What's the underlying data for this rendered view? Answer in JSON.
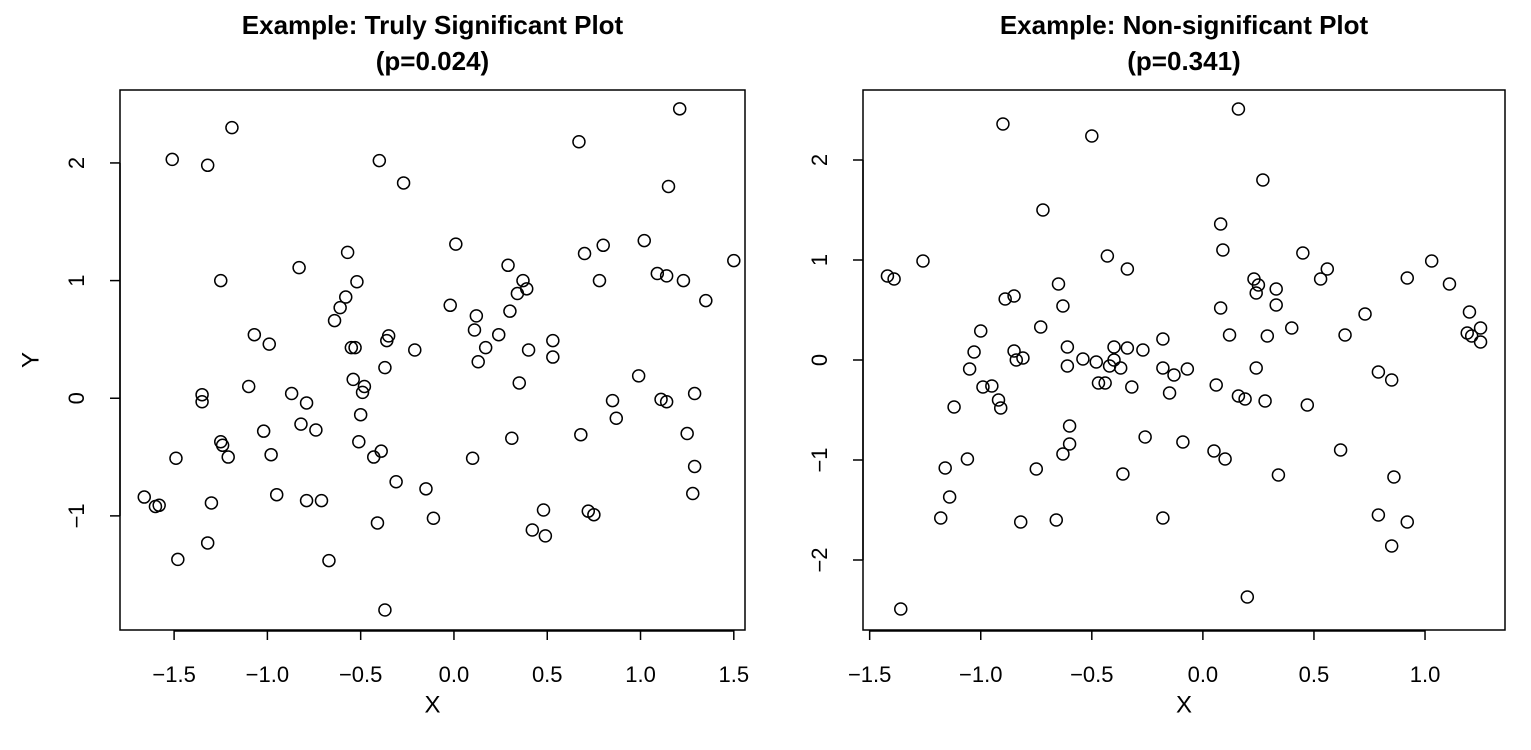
{
  "chart_data": [
    {
      "type": "scatter",
      "title": "Example: Truly Significant Plot",
      "subtitle": "(p=0.024)",
      "xlabel": "X",
      "ylabel": "Y",
      "color": "#000000",
      "xlim": [
        -1.79,
        1.56
      ],
      "ylim": [
        -1.97,
        2.62
      ],
      "xticks": [
        {
          "value": -1.5,
          "label": "−1.5"
        },
        {
          "value": -1,
          "label": "−1.0"
        },
        {
          "value": -0.5,
          "label": "−0.5"
        },
        {
          "value": 0,
          "label": "0.0"
        },
        0.5,
        {
          "value": 1,
          "label": "1.0"
        },
        1.5
      ],
      "yticks": [
        {
          "value": -1,
          "label": "−1"
        },
        0,
        1,
        2
      ],
      "x": [
        -1.66,
        -1.6,
        -1.58,
        -1.51,
        -1.49,
        -1.48,
        -1.35,
        -1.35,
        -1.32,
        -1.32,
        -1.3,
        -1.25,
        -1.25,
        -1.24,
        -1.21,
        -1.19,
        -1.1,
        -1.07,
        -1.02,
        -0.99,
        -0.98,
        -0.95,
        -0.87,
        -0.83,
        -0.82,
        -0.79,
        -0.79,
        -0.74,
        -0.71,
        -0.67,
        -0.64,
        -0.61,
        -0.58,
        -0.57,
        -0.55,
        -0.54,
        -0.53,
        -0.52,
        -0.51,
        -0.5,
        -0.49,
        -0.48,
        -0.43,
        -0.41,
        -0.39,
        -0.4,
        -0.37,
        -0.37,
        -0.36,
        -0.35,
        -0.31,
        -0.27,
        -0.21,
        -0.15,
        -0.11,
        -0.02,
        0.01,
        0.1,
        0.11,
        0.12,
        0.13,
        0.17,
        0.24,
        0.29,
        0.3,
        0.31,
        0.34,
        0.35,
        0.37,
        0.39,
        0.4,
        0.42,
        0.48,
        0.49,
        0.53,
        0.53,
        0.67,
        0.68,
        0.7,
        0.72,
        0.75,
        0.78,
        0.8,
        0.85,
        0.87,
        0.99,
        1.02,
        1.09,
        1.11,
        1.14,
        1.14,
        1.15,
        1.21,
        1.23,
        1.25,
        1.28,
        1.29,
        1.29,
        1.35,
        1.5
      ],
      "y": [
        -0.84,
        -0.92,
        -0.91,
        2.03,
        -0.51,
        -1.37,
        0.03,
        -0.03,
        1.98,
        -1.23,
        -0.89,
        1.0,
        -0.37,
        -0.4,
        -0.5,
        2.3,
        0.1,
        0.54,
        -0.28,
        0.46,
        -0.48,
        -0.82,
        0.04,
        1.11,
        -0.22,
        -0.87,
        -0.04,
        -0.27,
        -0.87,
        -1.38,
        0.66,
        0.77,
        0.86,
        1.24,
        0.43,
        0.16,
        0.43,
        0.99,
        -0.37,
        -0.14,
        0.05,
        0.1,
        -0.5,
        -1.06,
        -0.45,
        2.02,
        -1.8,
        0.26,
        0.49,
        0.53,
        -0.71,
        1.83,
        0.41,
        -0.77,
        -1.02,
        0.79,
        1.31,
        -0.51,
        0.58,
        0.7,
        0.31,
        0.43,
        0.54,
        1.13,
        0.74,
        -0.34,
        0.89,
        0.13,
        1.0,
        0.93,
        0.41,
        -1.12,
        -0.95,
        -1.17,
        0.49,
        0.35,
        2.18,
        -0.31,
        1.23,
        -0.96,
        -0.99,
        1.0,
        1.3,
        -0.02,
        -0.17,
        0.19,
        1.34,
        1.06,
        -0.01,
        -0.03,
        1.04,
        1.8,
        2.46,
        1.0,
        -0.3,
        -0.81,
        -0.58,
        0.04,
        0.83,
        1.17
      ]
    },
    {
      "type": "scatter",
      "title": "Example: Non-significant Plot",
      "subtitle": "(p=0.341)",
      "xlabel": "X",
      "color": "#000000",
      "xlim": [
        -1.53,
        1.36
      ],
      "ylim": [
        -2.7,
        2.7
      ],
      "xticks": [
        {
          "value": -1.5,
          "label": "−1.5"
        },
        {
          "value": -1,
          "label": "−1.0"
        },
        {
          "value": -0.5,
          "label": "−0.5"
        },
        {
          "value": 0,
          "label": "0.0"
        },
        0.5,
        {
          "value": 1,
          "label": "1.0"
        }
      ],
      "yticks": [
        {
          "value": -2,
          "label": "−2"
        },
        {
          "value": -1,
          "label": "−1"
        },
        0,
        1,
        2
      ],
      "x": [
        -1.42,
        -1.39,
        -1.36,
        -1.26,
        -1.18,
        -1.16,
        -1.14,
        -1.12,
        -1.06,
        -1.05,
        -1.03,
        -1.0,
        -0.99,
        -0.95,
        -0.92,
        -0.91,
        -0.9,
        -0.89,
        -0.85,
        -0.85,
        -0.84,
        -0.82,
        -0.81,
        -0.73,
        -0.75,
        -0.72,
        -0.66,
        -0.65,
        -0.63,
        -0.63,
        -0.61,
        -0.61,
        -0.6,
        -0.6,
        -0.54,
        -0.5,
        -0.48,
        -0.47,
        -0.44,
        -0.43,
        -0.42,
        -0.4,
        -0.4,
        -0.37,
        -0.36,
        -0.34,
        -0.34,
        -0.32,
        -0.27,
        -0.26,
        -0.18,
        -0.18,
        -0.18,
        -0.15,
        -0.13,
        -0.09,
        -0.07,
        0.05,
        0.06,
        0.08,
        0.08,
        0.09,
        0.1,
        0.12,
        0.16,
        0.16,
        0.19,
        0.2,
        0.23,
        0.24,
        0.24,
        0.25,
        0.27,
        0.28,
        0.29,
        0.33,
        0.33,
        0.34,
        0.4,
        0.45,
        0.47,
        0.53,
        0.56,
        0.62,
        0.64,
        0.73,
        0.79,
        0.79,
        0.85,
        0.85,
        0.86,
        0.92,
        0.92,
        1.03,
        1.11,
        1.2,
        1.19,
        1.21,
        1.25,
        1.25
      ],
      "y": [
        0.84,
        0.81,
        -2.49,
        0.99,
        -1.58,
        -1.08,
        -1.37,
        -0.47,
        -0.99,
        -0.09,
        0.08,
        0.29,
        -0.27,
        -0.26,
        -0.4,
        -0.48,
        2.36,
        0.61,
        0.64,
        0.09,
        0.0,
        -1.62,
        0.02,
        0.33,
        -1.09,
        1.5,
        -1.6,
        0.76,
        0.54,
        -0.94,
        0.13,
        -0.06,
        -0.66,
        -0.84,
        0.01,
        2.24,
        -0.02,
        -0.23,
        -0.23,
        1.04,
        -0.06,
        0.13,
        0.0,
        -0.08,
        -1.14,
        0.91,
        0.12,
        -0.27,
        0.1,
        -0.77,
        -0.08,
        -1.58,
        0.21,
        -0.33,
        -0.15,
        -0.82,
        -0.09,
        -0.91,
        -0.25,
        1.36,
        0.52,
        1.1,
        -0.99,
        0.25,
        2.51,
        -0.36,
        -0.39,
        -2.37,
        0.81,
        0.67,
        -0.08,
        0.75,
        1.8,
        -0.41,
        0.24,
        0.71,
        0.55,
        -1.15,
        0.32,
        1.07,
        -0.45,
        0.81,
        0.91,
        -0.9,
        0.25,
        0.46,
        -0.12,
        -1.55,
        -0.2,
        -1.86,
        -1.17,
        -1.62,
        0.82,
        0.99,
        0.76,
        0.48,
        0.27,
        0.24,
        0.32,
        0.18
      ]
    }
  ]
}
